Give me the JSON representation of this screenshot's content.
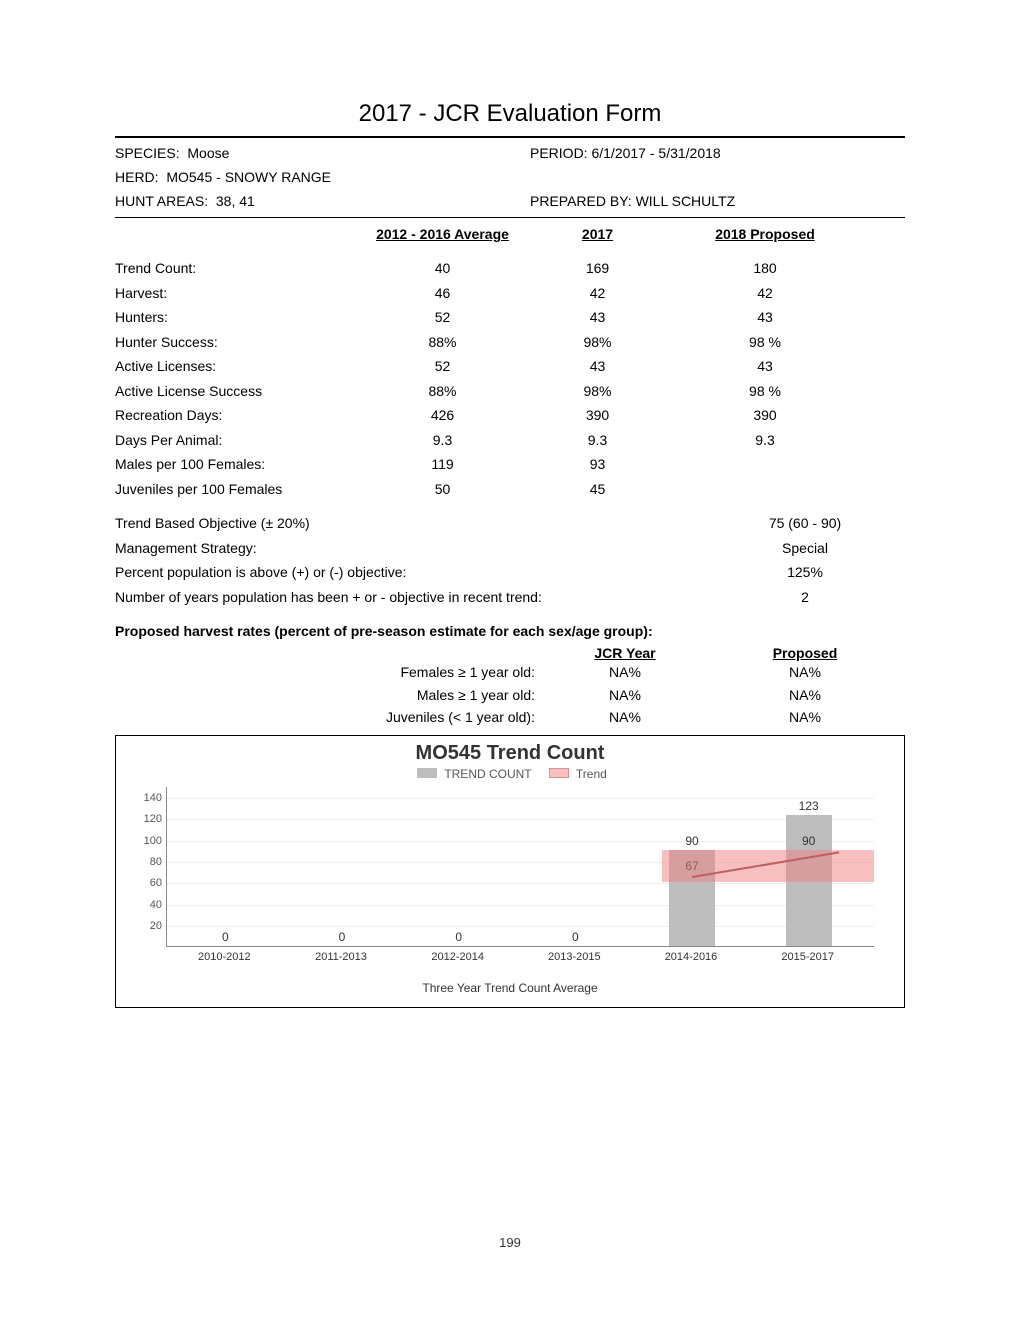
{
  "title": "2017 - JCR Evaluation Form",
  "header": {
    "species_label": "SPECIES:",
    "species": "Moose",
    "period_label": "PERIOD:",
    "period": "6/1/2017 - 5/31/2018",
    "herd_label": "HERD:",
    "herd": "MO545 - SNOWY RANGE",
    "hunt_label": "HUNT AREAS:",
    "hunt": "38, 41",
    "prepared_label": "PREPARED BY:",
    "prepared": "WILL SCHULTZ"
  },
  "columns": {
    "a": "2012 - 2016 Average",
    "b": "2017",
    "c": "2018 Proposed"
  },
  "rows": [
    {
      "label": "Trend Count:",
      "a": "40",
      "b": "169",
      "c": "180"
    },
    {
      "label": "Harvest:",
      "a": "46",
      "b": "42",
      "c": "42"
    },
    {
      "label": "Hunters:",
      "a": "52",
      "b": "43",
      "c": "43"
    },
    {
      "label": "Hunter Success:",
      "a": "88%",
      "b": "98%",
      "c": "98 %"
    },
    {
      "label": "Active Licenses:",
      "a": "52",
      "b": "43",
      "c": "43"
    },
    {
      "label": "Active License Success",
      "a": "88%",
      "b": "98%",
      "c": "98 %"
    },
    {
      "label": "Recreation Days:",
      "a": "426",
      "b": "390",
      "c": "390"
    },
    {
      "label": "Days Per Animal:",
      "a": "9.3",
      "b": "9.3",
      "c": "9.3"
    },
    {
      "label": "Males per 100 Females:",
      "a": "119",
      "b": "93",
      "c": ""
    },
    {
      "label": "Juveniles per 100 Females",
      "a": "50",
      "b": "45",
      "c": ""
    }
  ],
  "summary": [
    {
      "label": "Trend Based Objective (± 20%)",
      "val": "75 (60 - 90)"
    },
    {
      "label": "Management Strategy:",
      "val": "Special"
    },
    {
      "label": "Percent population is above (+) or (-) objective:",
      "val": "125%"
    },
    {
      "label": "Number of years population has been + or - objective in recent trend:",
      "val": "2"
    }
  ],
  "rates": {
    "title": "Proposed harvest rates (percent of pre-season estimate for each sex/age group):",
    "col_a": "JCR Year",
    "col_b": "Proposed",
    "rows": [
      {
        "label": "Females ≥ 1 year old:",
        "a": "NA%",
        "b": "NA%"
      },
      {
        "label": "Males ≥ 1 year old:",
        "a": "NA%",
        "b": "NA%"
      },
      {
        "label": "Juveniles (< 1 year old):",
        "a": "NA%",
        "b": "NA%"
      }
    ]
  },
  "chart": {
    "title": "MO545 Trend Count",
    "legend_a": "TREND COUNT",
    "legend_b": "Trend",
    "type": "bar",
    "y_ticks": [
      20,
      40,
      60,
      80,
      100,
      120,
      140
    ],
    "ylim": [
      0,
      150
    ],
    "categories": [
      "2010-2012",
      "2011-2013",
      "2012-2014",
      "2013-2015",
      "2014-2016",
      "2015-2017"
    ],
    "values": [
      0,
      0,
      0,
      0,
      90,
      123
    ],
    "trend_label_values": [
      null,
      null,
      null,
      null,
      "67",
      "90"
    ],
    "trend_band": {
      "start_idx": 4,
      "low": 60,
      "high": 90
    },
    "trend_line": {
      "start_idx": 4,
      "start_val": 67,
      "end_val": 90
    },
    "x_title": "Three Year Trend Count Average",
    "bar_color": "#bdbdbd",
    "band_color": "rgba(240,128,128,0.5)",
    "line_color": "#c06060",
    "background_color": "#ffffff",
    "label_fontsize": 11,
    "title_fontsize": 20
  },
  "page_number": "199"
}
